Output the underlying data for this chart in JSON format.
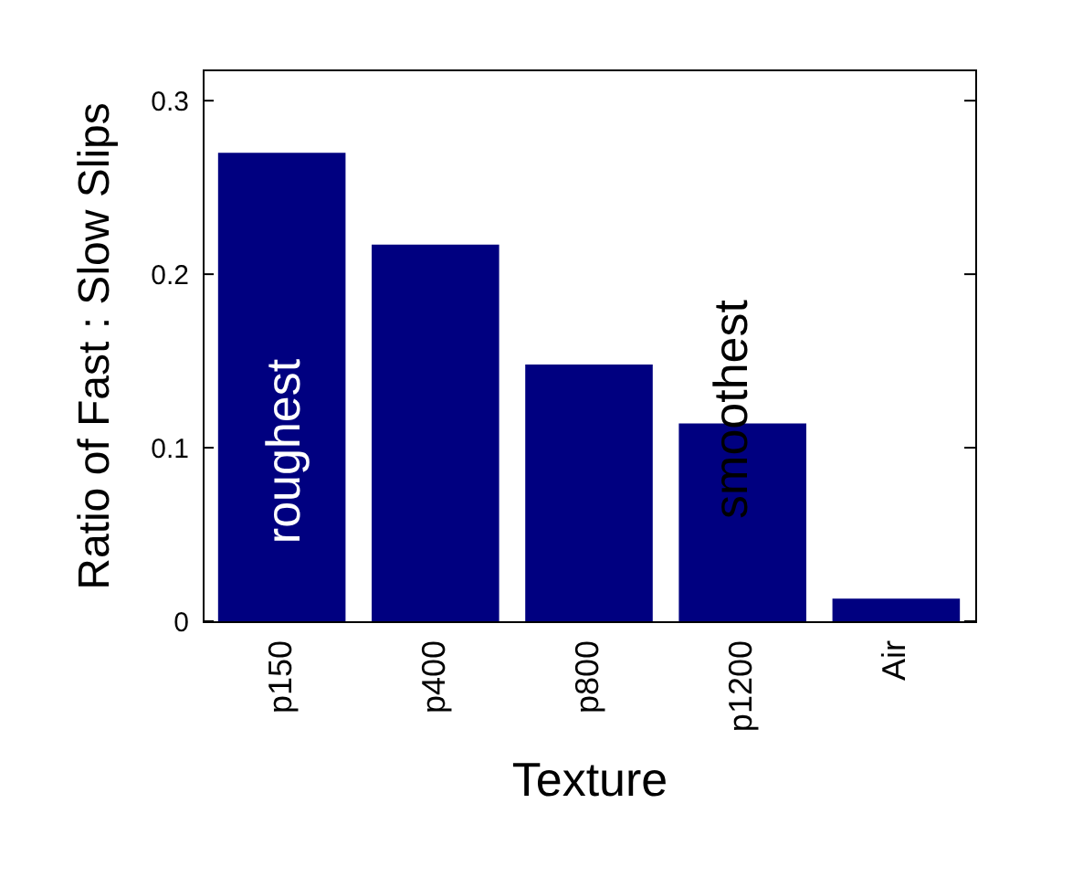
{
  "chart_data": {
    "type": "bar",
    "categories": [
      "p150",
      "p400",
      "p800",
      "p1200",
      "Air"
    ],
    "values": [
      0.27,
      0.217,
      0.148,
      0.114,
      0.013
    ],
    "color": "#000080",
    "xlabel": "Texture",
    "ylabel": "Ratio of Fast : Slow Slips",
    "ylim": [
      0,
      0.318
    ],
    "yticks": [
      0,
      0.1,
      0.2,
      0.3
    ],
    "grid": false,
    "annotations": [
      "roughest",
      "smoothest"
    ]
  }
}
